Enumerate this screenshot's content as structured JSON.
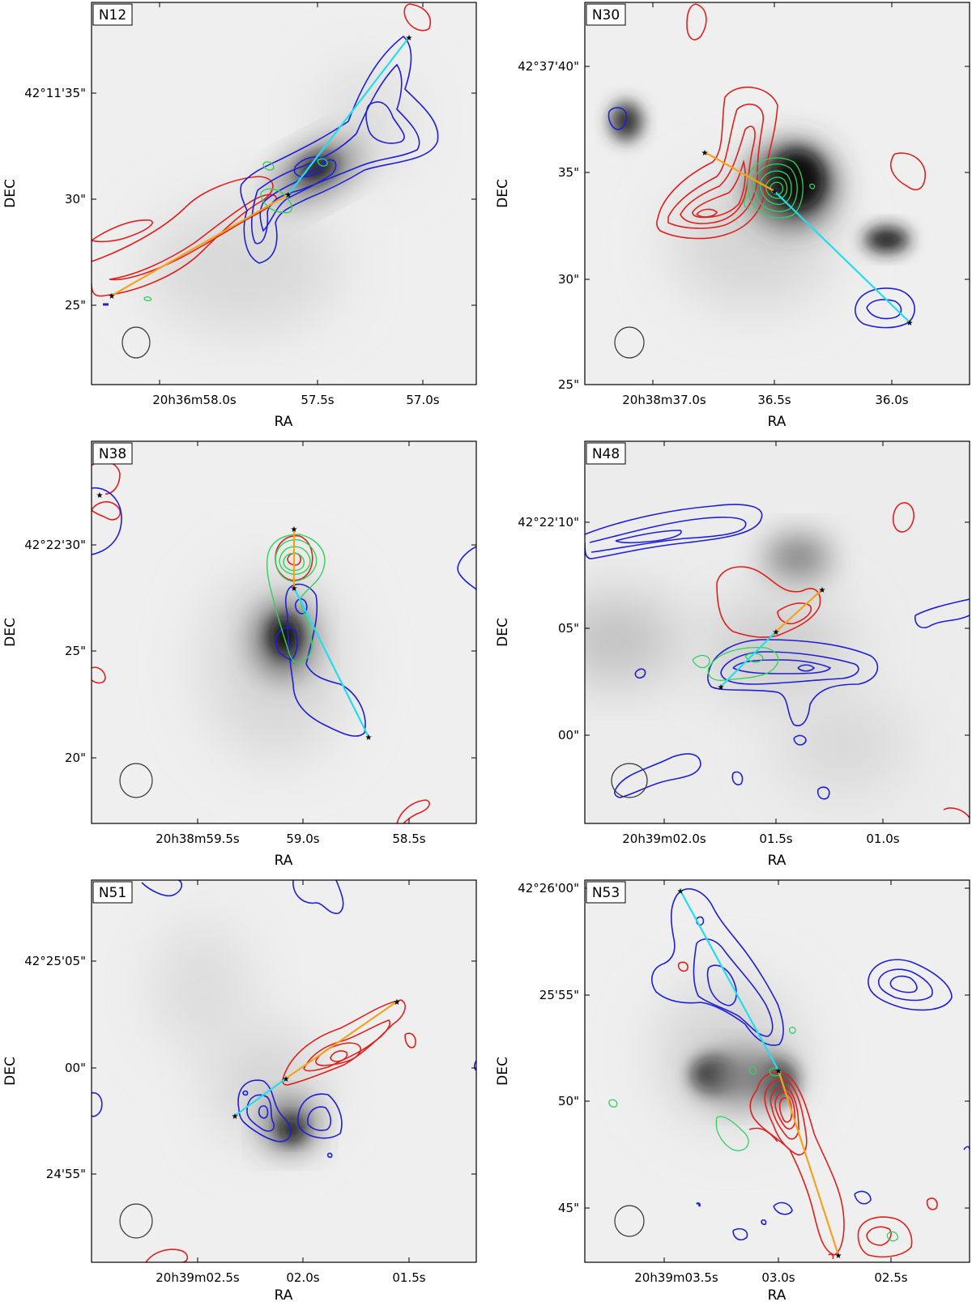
{
  "panels": [
    {
      "id": "N12",
      "label": "N12",
      "xlabel": "RA",
      "ylabel": "DEC",
      "ra_ticks": [
        "20h36m58.0s",
        "57.5s",
        "57.0s"
      ],
      "dec_ticks": [
        "42°11'35\"",
        "30\"",
        "25\""
      ]
    },
    {
      "id": "N30",
      "label": "N30",
      "xlabel": "RA",
      "ylabel": "DEC",
      "ra_ticks": [
        "20h38m37.0s",
        "36.5s",
        "36.0s"
      ],
      "dec_ticks": [
        "42°37'40\"",
        "35\"",
        "30\"",
        "25\""
      ]
    },
    {
      "id": "N38",
      "label": "N38",
      "xlabel": "RA",
      "ylabel": "DEC",
      "ra_ticks": [
        "20h38m59.5s",
        "59.0s",
        "58.5s"
      ],
      "dec_ticks": [
        "42°22'30\"",
        "25\"",
        "20\""
      ]
    },
    {
      "id": "N48",
      "label": "N48",
      "xlabel": "RA",
      "ylabel": "DEC",
      "ra_ticks": [
        "20h39m02.0s",
        "01.5s",
        "01.0s"
      ],
      "dec_ticks": [
        "42°22'10\"",
        "05\"",
        "00\""
      ]
    },
    {
      "id": "N51",
      "label": "N51",
      "xlabel": "RA",
      "ylabel": "DEC",
      "ra_ticks": [
        "20h39m02.5s",
        "02.0s",
        "01.5s"
      ],
      "dec_ticks": [
        "42°25'05\"",
        "00\"",
        "24'55\""
      ]
    },
    {
      "id": "N53",
      "label": "N53",
      "xlabel": "RA",
      "ylabel": "DEC",
      "ra_ticks": [
        "20h39m03.5s",
        "03.0s",
        "02.5s"
      ],
      "dec_ticks": [
        "42°26'00\"",
        "25'55\"",
        "50\"",
        "45\""
      ]
    }
  ],
  "colors": {
    "blue_contour": "#1f1fd6",
    "red_contour": "#e0201c",
    "green_contour": "#2ed35a",
    "blue_lobe_line": "#22dded",
    "red_lobe_line": "#f7a21d",
    "beam": "#333333"
  }
}
